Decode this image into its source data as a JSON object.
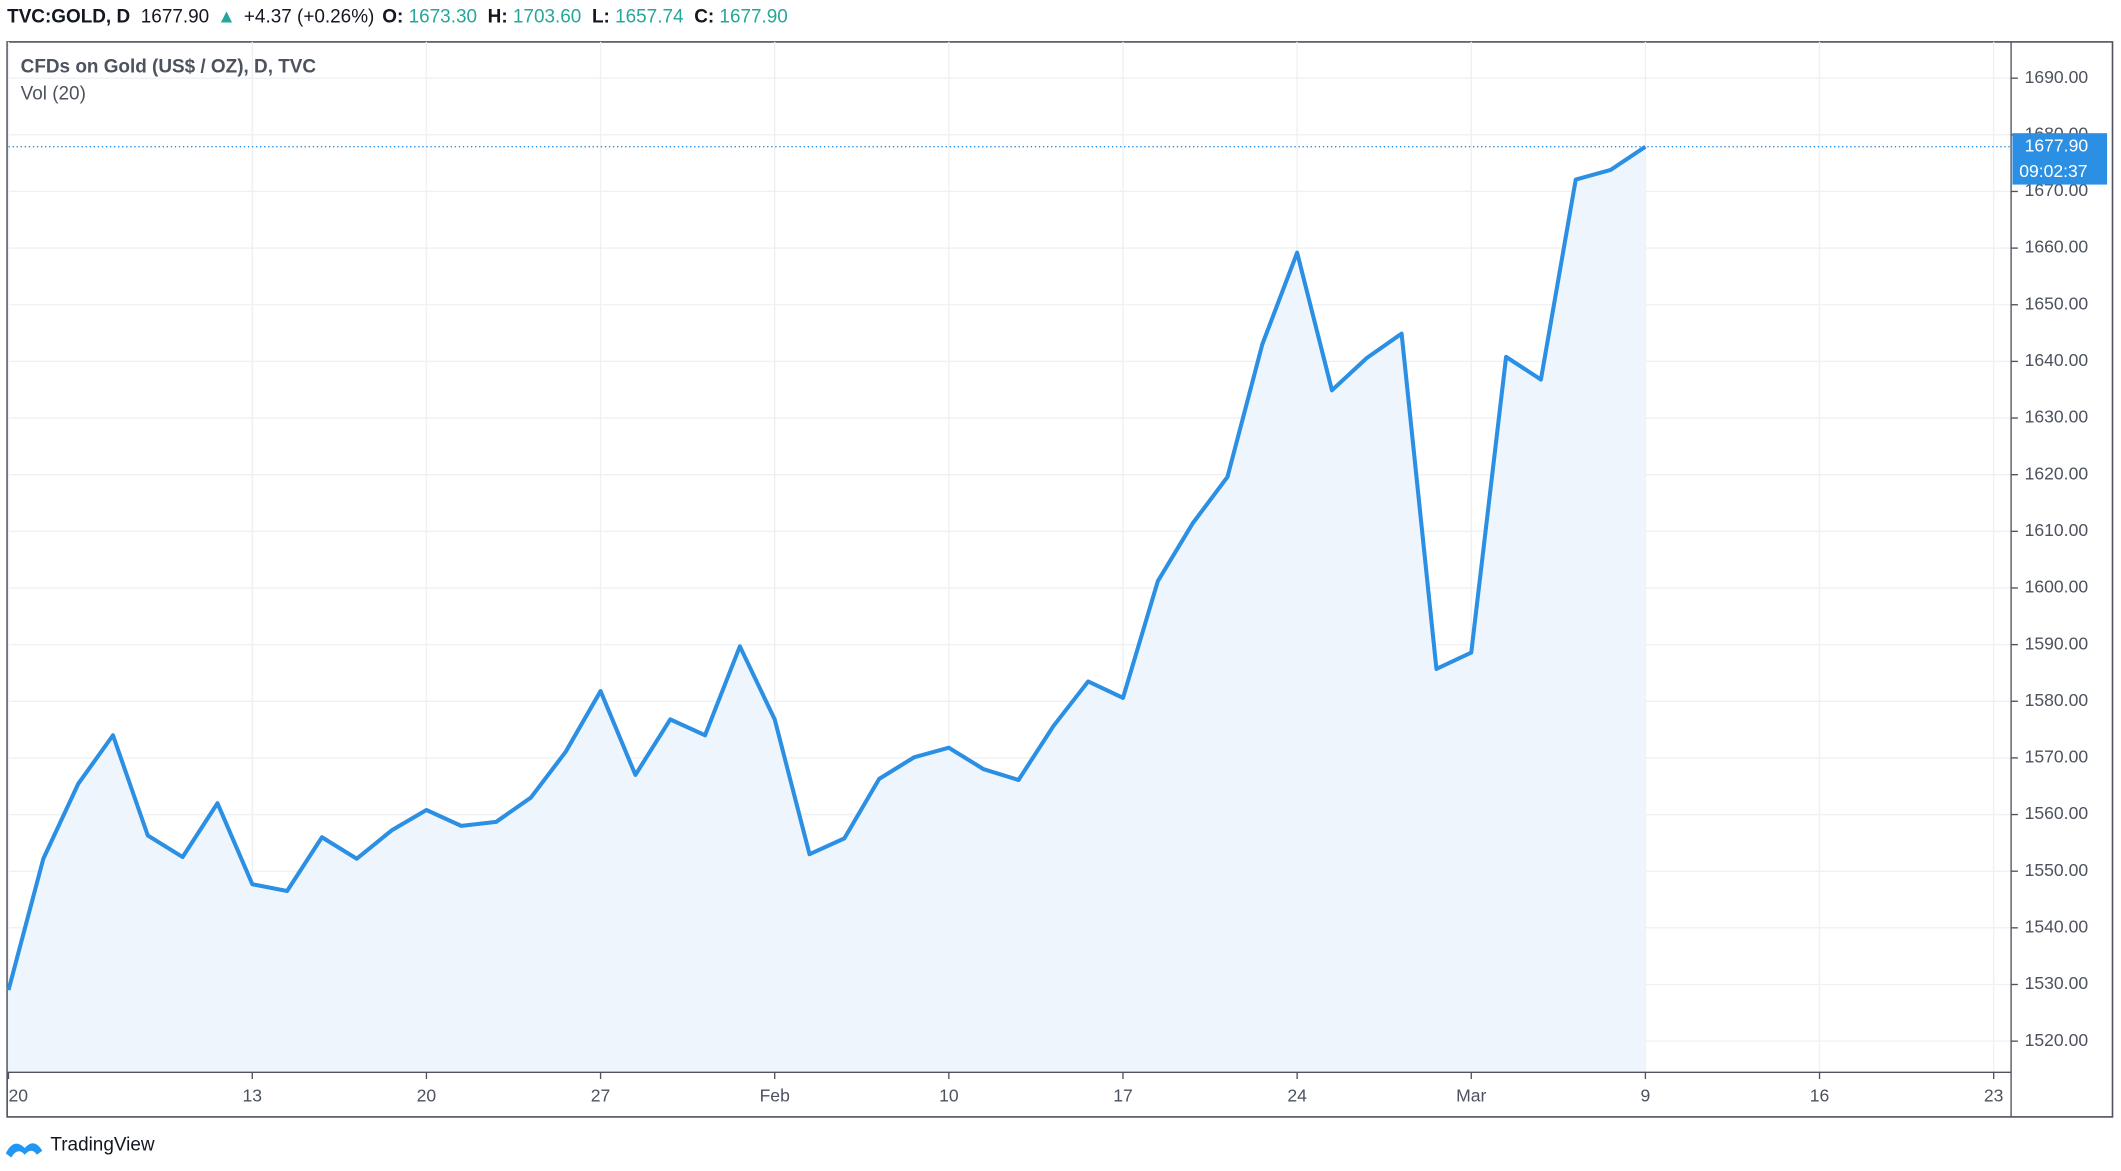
{
  "header": {
    "symbol": "TVC:GOLD, D",
    "last": "1677.90",
    "arrow": "▲",
    "change": "+4.37 (+0.26%)",
    "open_label": "O:",
    "open": "1673.30",
    "high_label": "H:",
    "high": "1703.60",
    "low_label": "L:",
    "low": "1657.74",
    "close_label": "C:",
    "close": "1677.90"
  },
  "chart_data": {
    "type": "line",
    "title": "CFDs on Gold (US$ / OZ), D, TVC",
    "subtitle": "Vol (20)",
    "color": "#2b8fe3",
    "area_color": "#eef5fd",
    "values": [
      1529,
      1552.2,
      1565.4,
      1574,
      1556.3,
      1552.5,
      1562,
      1547.7,
      1546.5,
      1556,
      1552.2,
      1557.2,
      1560.8,
      1558,
      1558.7,
      1563,
      1571.1,
      1581.8,
      1567,
      1576.8,
      1574,
      1589.7,
      1576.8,
      1553,
      1555.8,
      1566.3,
      1570.1,
      1571.8,
      1568,
      1566.1,
      1575.6,
      1583.5,
      1580.6,
      1601.2,
      1611.4,
      1619.6,
      1643,
      1659.2,
      1634.9,
      1640.6,
      1644.9,
      1585.7,
      1588.6,
      1640.8,
      1636.8,
      1672.1,
      1673.8,
      1677.9
    ],
    "xlim": [
      0,
      57.5
    ],
    "xticks": [
      {
        "value": 0,
        "label": "20"
      },
      {
        "value": 7,
        "label": "13"
      },
      {
        "value": 12,
        "label": "20"
      },
      {
        "value": 17,
        "label": "27"
      },
      {
        "value": 22,
        "label": "Feb"
      },
      {
        "value": 27,
        "label": "10"
      },
      {
        "value": 32,
        "label": "17"
      },
      {
        "value": 37,
        "label": "24"
      },
      {
        "value": 42,
        "label": "Mar"
      },
      {
        "value": 47,
        "label": "9"
      },
      {
        "value": 52,
        "label": "16"
      },
      {
        "value": 57,
        "label": "23"
      }
    ],
    "ylim": [
      1514.5,
      1696.4
    ],
    "yticks": [
      {
        "value": 1520,
        "label": "1520.00"
      },
      {
        "value": 1530,
        "label": "1530.00"
      },
      {
        "value": 1540,
        "label": "1540.00"
      },
      {
        "value": 1550,
        "label": "1550.00"
      },
      {
        "value": 1560,
        "label": "1560.00"
      },
      {
        "value": 1570,
        "label": "1570.00"
      },
      {
        "value": 1580,
        "label": "1580.00"
      },
      {
        "value": 1590,
        "label": "1590.00"
      },
      {
        "value": 1600,
        "label": "1600.00"
      },
      {
        "value": 1610,
        "label": "1610.00"
      },
      {
        "value": 1620,
        "label": "1620.00"
      },
      {
        "value": 1630,
        "label": "1630.00"
      },
      {
        "value": 1640,
        "label": "1640.00"
      },
      {
        "value": 1650,
        "label": "1650.00"
      },
      {
        "value": 1660,
        "label": "1660.00"
      },
      {
        "value": 1670,
        "label": "1670.00"
      },
      {
        "value": 1680,
        "label": "1680.00"
      },
      {
        "value": 1690,
        "label": "1690.00"
      }
    ],
    "grid": true,
    "price_label": "1677.90",
    "countdown": "09:02:37"
  },
  "footer": {
    "brand": "TradingView"
  }
}
